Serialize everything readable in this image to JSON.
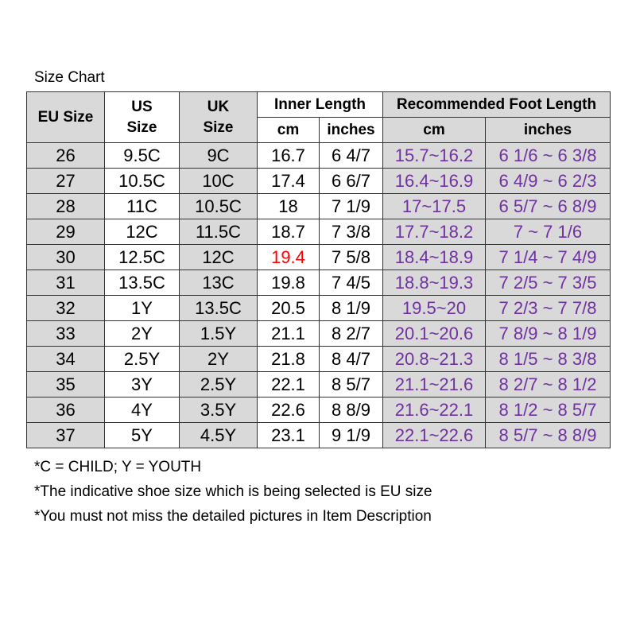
{
  "title": "Size Chart",
  "header": {
    "eu": "EU Size",
    "us_line1": "US",
    "us_line2": "Size",
    "uk_line1": "UK",
    "uk_line2": "Size",
    "inner_length": "Inner Length",
    "recommended": "Recommended Foot Length",
    "cm": "cm",
    "inches": "inches",
    "rec_cm": "cm",
    "rec_inches": "inches"
  },
  "rows": [
    {
      "eu": "26",
      "us": "9.5C",
      "uk": "9C",
      "cm": "16.7",
      "in": "6 4/7",
      "rec_cm": "15.7~16.2",
      "rec_in": "6 1/6 ~ 6 3/8"
    },
    {
      "eu": "27",
      "us": "10.5C",
      "uk": "10C",
      "cm": "17.4",
      "in": "6 6/7",
      "rec_cm": "16.4~16.9",
      "rec_in": "6 4/9 ~ 6 2/3"
    },
    {
      "eu": "28",
      "us": "11C",
      "uk": "10.5C",
      "cm": "18",
      "in": "7 1/9",
      "rec_cm": "17~17.5",
      "rec_in": "6 5/7 ~ 6 8/9"
    },
    {
      "eu": "29",
      "us": "12C",
      "uk": "11.5C",
      "cm": "18.7",
      "in": "7 3/8",
      "rec_cm": "17.7~18.2",
      "rec_in": "7 ~ 7 1/6"
    },
    {
      "eu": "30",
      "us": "12.5C",
      "uk": "12C",
      "cm": "19.4",
      "in": "7 5/8",
      "rec_cm": "18.4~18.9",
      "rec_in": "7 1/4 ~ 7 4/9"
    },
    {
      "eu": "31",
      "us": "13.5C",
      "uk": "13C",
      "cm": "19.8",
      "in": "7 4/5",
      "rec_cm": "18.8~19.3",
      "rec_in": "7 2/5 ~ 7 3/5"
    },
    {
      "eu": "32",
      "us": "1Y",
      "uk": "13.5C",
      "cm": "20.5",
      "in": "8 1/9",
      "rec_cm": "19.5~20",
      "rec_in": "7 2/3 ~ 7 7/8"
    },
    {
      "eu": "33",
      "us": "2Y",
      "uk": "1.5Y",
      "cm": "21.1",
      "in": "8 2/7",
      "rec_cm": "20.1~20.6",
      "rec_in": "7 8/9 ~ 8 1/9"
    },
    {
      "eu": "34",
      "us": "2.5Y",
      "uk": "2Y",
      "cm": "21.8",
      "in": "8 4/7",
      "rec_cm": "20.8~21.3",
      "rec_in": "8 1/5 ~ 8 3/8"
    },
    {
      "eu": "35",
      "us": "3Y",
      "uk": "2.5Y",
      "cm": "22.1",
      "in": "8 5/7",
      "rec_cm": "21.1~21.6",
      "rec_in": "8 2/7 ~ 8 1/2"
    },
    {
      "eu": "36",
      "us": "4Y",
      "uk": "3.5Y",
      "cm": "22.6",
      "in": "8 8/9",
      "rec_cm": "21.6~22.1",
      "rec_in": "8 1/2 ~ 8 5/7"
    },
    {
      "eu": "37",
      "us": "5Y",
      "uk": "4.5Y",
      "cm": "23.1",
      "in": "9 1/9",
      "rec_cm": "22.1~22.6",
      "rec_in": "8 5/7 ~ 8 8/9"
    }
  ],
  "highlight": {
    "row": "30",
    "column": "cm",
    "color": "#ff0000"
  },
  "colors": {
    "header_bg": "#d9d9d9",
    "recommended_text": "#7030a0",
    "border": "#333333"
  },
  "notes": [
    "*C = CHILD; Y = YOUTH",
    "*The indicative shoe size which is being selected is EU size",
    "*You must not miss the detailed pictures in Item Description"
  ]
}
